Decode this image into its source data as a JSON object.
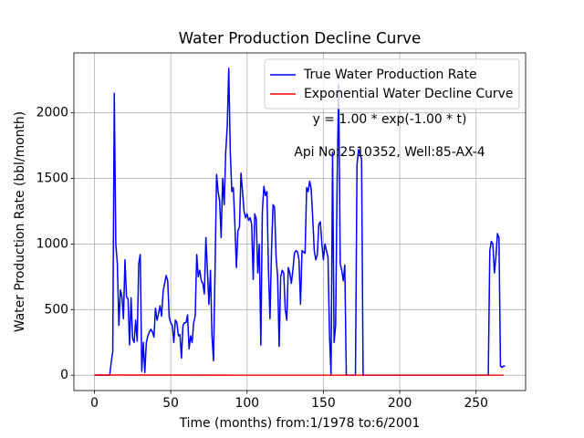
{
  "chart_data": {
    "type": "line",
    "title": "Water Production Decline Curve",
    "xlabel": "Time (months) from:1/1978 to:6/2001",
    "ylabel": "Water Production Rate (bbl/month)",
    "annotations": [
      "y = 1.00 * exp(-1.00 * t)",
      "Api No:2510352, Well:85-AX-4"
    ],
    "xlim": [
      -13.45,
      282.45
    ],
    "xticks": [
      0,
      50,
      100,
      150,
      200,
      250
    ],
    "ylim": [
      -117,
      2457
    ],
    "yticks": [
      0,
      500,
      1000,
      1500,
      2000
    ],
    "grid": true,
    "legend": "upper right",
    "series": [
      {
        "name": "True Water Production Rate",
        "color": "#0000ff",
        "x": [
          0,
          10,
          11,
          12,
          13,
          14,
          15,
          16,
          17,
          18,
          19,
          20,
          21,
          22,
          23,
          24,
          25,
          26,
          27,
          28,
          29,
          30,
          31,
          32,
          33,
          34,
          35,
          36,
          37,
          38,
          39,
          40,
          41,
          42,
          43,
          44,
          45,
          46,
          47,
          48,
          49,
          50,
          51,
          52,
          53,
          54,
          55,
          56,
          57,
          58,
          59,
          60,
          61,
          62,
          63,
          64,
          65,
          66,
          67,
          68,
          69,
          70,
          71,
          72,
          73,
          74,
          75,
          76,
          77,
          78,
          79,
          80,
          81,
          82,
          83,
          84,
          85,
          86,
          87,
          88,
          89,
          90,
          91,
          92,
          93,
          94,
          95,
          96,
          97,
          98,
          99,
          100,
          101,
          102,
          103,
          104,
          105,
          106,
          107,
          108,
          109,
          110,
          111,
          112,
          113,
          114,
          115,
          116,
          117,
          118,
          119,
          120,
          121,
          122,
          123,
          124,
          125,
          126,
          127,
          128,
          129,
          130,
          131,
          132,
          133,
          134,
          135,
          136,
          137,
          138,
          139,
          140,
          141,
          142,
          143,
          144,
          145,
          146,
          147,
          148,
          149,
          150,
          151,
          152,
          153,
          154,
          155,
          156,
          157,
          158,
          159,
          160,
          161,
          162,
          163,
          164,
          165,
          166,
          167,
          168,
          169,
          170,
          171,
          172,
          173,
          174,
          175,
          176,
          177,
          258,
          259,
          260,
          261,
          262,
          263,
          264,
          265,
          266,
          267,
          268,
          269
        ],
        "values": [
          0,
          0,
          100,
          180,
          2150,
          1000,
          850,
          380,
          650,
          600,
          430,
          880,
          600,
          580,
          230,
          590,
          280,
          250,
          420,
          260,
          850,
          920,
          30,
          250,
          20,
          250,
          300,
          330,
          350,
          330,
          290,
          510,
          420,
          470,
          530,
          450,
          640,
          700,
          760,
          720,
          440,
          400,
          380,
          250,
          420,
          400,
          300,
          310,
          130,
          380,
          400,
          400,
          460,
          200,
          300,
          250,
          400,
          450,
          920,
          750,
          800,
          720,
          700,
          620,
          1050,
          800,
          540,
          800,
          300,
          110,
          800,
          1530,
          1400,
          1330,
          1050,
          1500,
          1300,
          1700,
          1900,
          2340,
          1700,
          1400,
          1430,
          1150,
          820,
          1100,
          1130,
          1540,
          1400,
          1250,
          1200,
          1230,
          1180,
          1200,
          1150,
          730,
          1230,
          1190,
          780,
          1000,
          230,
          1250,
          1440,
          1370,
          1400,
          800,
          430,
          950,
          1300,
          1280,
          900,
          750,
          220,
          750,
          800,
          780,
          500,
          420,
          820,
          780,
          700,
          800,
          930,
          950,
          940,
          880,
          540,
          950,
          940,
          930,
          1430,
          1400,
          1480,
          1420,
          1200,
          950,
          880,
          920,
          1150,
          1170,
          1000,
          880,
          1000,
          950,
          900,
          300,
          0,
          1700,
          250,
          380,
          1500,
          2220,
          850,
          800,
          720,
          840,
          0,
          0,
          0,
          0,
          0,
          0,
          0,
          1600,
          1720,
          1680,
          1650,
          0,
          0,
          0,
          950,
          1020,
          1000,
          780,
          900,
          1080,
          1050,
          70,
          60,
          70,
          70
        ]
      },
      {
        "name": "Exponential Water Decline Curve",
        "color": "#ff0000",
        "x": [
          0,
          268
        ],
        "values": [
          1,
          0
        ]
      }
    ]
  }
}
